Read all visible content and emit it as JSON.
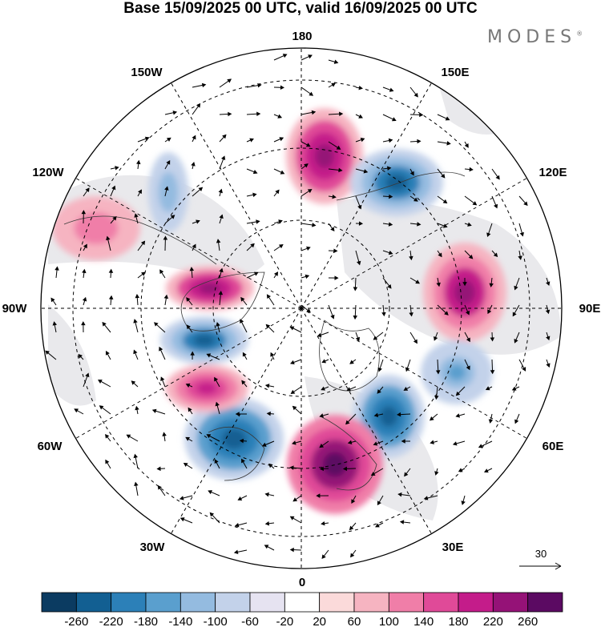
{
  "header": {
    "title": "Base 15/09/2025 00 UTC, valid 16/09/2025 00 UTC",
    "brand": "MODES",
    "brand_mark": "®"
  },
  "map": {
    "projection": "polar-stereographic-north",
    "longitude_labels": [
      "180",
      "150E",
      "120E",
      "90E",
      "60E",
      "30E",
      "0",
      "30W",
      "60W",
      "90W",
      "120W",
      "150W"
    ],
    "anomalies": [
      {
        "name": "pacific-positive",
        "value": 200
      },
      {
        "name": "east-siberia-negative",
        "value": -200
      },
      {
        "name": "siberia-positive",
        "value": 190
      },
      {
        "name": "asia-negative",
        "value": -120
      },
      {
        "name": "russia-negative",
        "value": -210
      },
      {
        "name": "scandinavia-positive",
        "value": 240
      },
      {
        "name": "atlantic-negative",
        "value": -210
      },
      {
        "name": "greenland-positive",
        "value": 160
      },
      {
        "name": "canada-negative",
        "value": -200
      },
      {
        "name": "canada-positive",
        "value": 200
      },
      {
        "name": "alaska-positive",
        "value": 80
      },
      {
        "name": "pacific-nw-negative",
        "value": -100
      }
    ]
  },
  "vector_scale": {
    "label": "30"
  },
  "colorbar": {
    "labels": [
      "-260",
      "-220",
      "-180",
      "-140",
      "-100",
      "-60",
      "-20",
      "20",
      "60",
      "100",
      "140",
      "180",
      "220",
      "260"
    ],
    "colors": [
      "#0b3b61",
      "#125f92",
      "#2c80b8",
      "#5a9fce",
      "#94bbe0",
      "#c3d2ea",
      "#e6e3f1",
      "#ffffff",
      "#fbdada",
      "#f6b4c1",
      "#f07ea8",
      "#e04a98",
      "#c41c8a",
      "#951277",
      "#5b0a62"
    ]
  }
}
